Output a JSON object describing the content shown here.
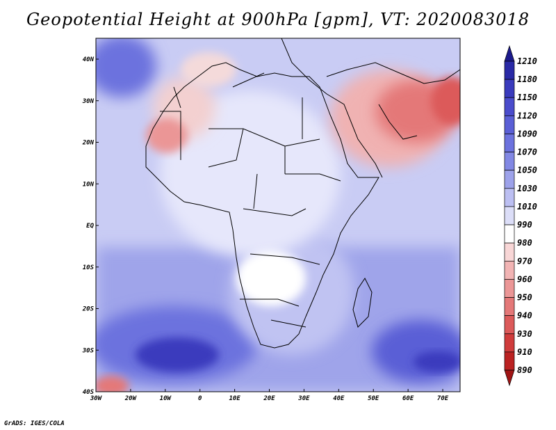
{
  "title": "Geopotential Height at 900hPa [gpm], VT: 2020083018",
  "footer": "GrADS: IGES/COLA",
  "map": {
    "lon_labels": [
      "30W",
      "20W",
      "10W",
      "0",
      "10E",
      "20E",
      "30E",
      "40E",
      "50E",
      "60E",
      "70E"
    ],
    "lat_labels": [
      "40N",
      "30N",
      "20N",
      "10N",
      "EQ",
      "10S",
      "20S",
      "30S",
      "40S"
    ]
  },
  "colorbar": {
    "labels": [
      "1210",
      "1180",
      "1150",
      "1120",
      "1090",
      "1070",
      "1050",
      "1030",
      "1010",
      "990",
      "980",
      "970",
      "960",
      "950",
      "940",
      "930",
      "910",
      "890"
    ],
    "colors": [
      "#1c1a8c",
      "#2a2aa6",
      "#3a3bbd",
      "#4a4ccc",
      "#5a5fd6",
      "#6c72de",
      "#8288e4",
      "#9da2ea",
      "#bcbff2",
      "#dcdef8",
      "#ffffff",
      "#f8d6d6",
      "#f2b4b4",
      "#eb9696",
      "#e47878",
      "#dc5a5a",
      "#d03c3c",
      "#bb2222",
      "#a01414"
    ]
  }
}
